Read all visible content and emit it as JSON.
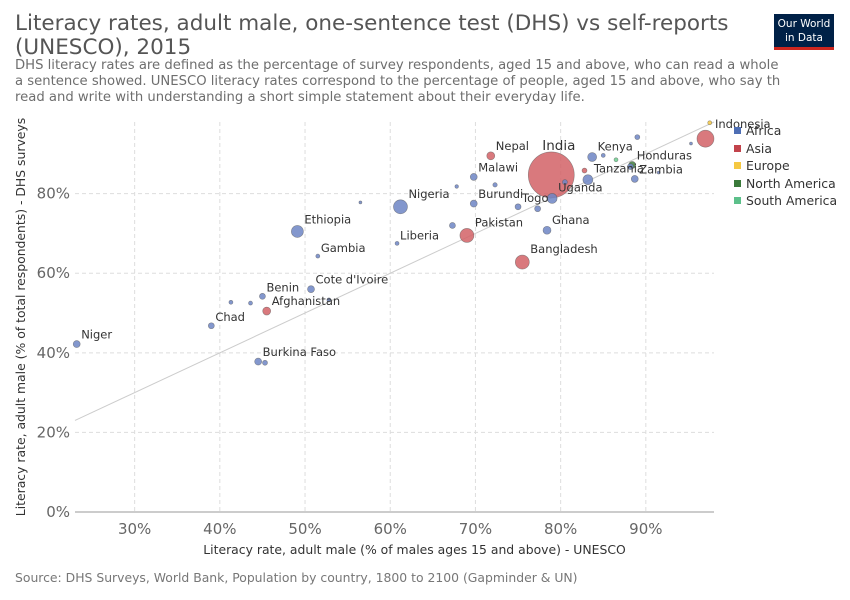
{
  "header": {
    "title": "Literacy rates, adult male, one-sentence test (DHS) vs self-reports (UNESCO), 2015",
    "subtitle_lines": [
      "DHS literacy rates are defined as the percentage of survey respondents, aged 15 and above, who can read a whole",
      "a sentence showed. UNESCO literacy rates correspond to the percentage of people, aged 15 and above, who say th",
      "read and write with understanding a short simple statement about their everyday life."
    ]
  },
  "logo": {
    "line1": "Our World",
    "line2": "in Data"
  },
  "footer": {
    "source": "Source: DHS Surveys, World Bank, Population by country, 1800 to 2100 (Gapminder & UN)"
  },
  "colors": {
    "Africa": "#6d85c4",
    "Asia": "#d26166",
    "Europe": "#f5c842",
    "North America": "#3f7f3f",
    "South America": "#6dcf8f",
    "grid": "#dddddd",
    "reference_line": "#cccccc"
  },
  "legend": [
    {
      "label": "Africa",
      "color": "#4e6eb4"
    },
    {
      "label": "Asia",
      "color": "#c2434b"
    },
    {
      "label": "Europe",
      "color": "#f5c842"
    },
    {
      "label": "North America",
      "color": "#3a7a3a"
    },
    {
      "label": "South America",
      "color": "#5cc08a"
    }
  ],
  "chart_data": {
    "type": "scatter",
    "title": "Literacy rates, adult male, one-sentence test (DHS) vs self-reports (UNESCO), 2015",
    "xlabel": "Literacy rate, adult male (% of males ages 15 and above) - UNESCO",
    "ylabel": "Literacy rate, adult male (% of total respondents) - DHS surveys",
    "xlim": [
      23,
      98
    ],
    "ylim": [
      0,
      98
    ],
    "x_ticks": [
      30,
      40,
      50,
      60,
      70,
      80,
      90
    ],
    "x_tick_labels": [
      "30%",
      "40%",
      "50%",
      "60%",
      "70%",
      "80%",
      "90%"
    ],
    "y_ticks": [
      0,
      20,
      40,
      60,
      80
    ],
    "y_tick_labels": [
      "0%",
      "20%",
      "40%",
      "60%",
      "80%"
    ],
    "grid": true,
    "reference_line": "y = x",
    "size_encoding": "population",
    "points": [
      {
        "name": "Niger",
        "x": 23.2,
        "y": 42.2,
        "region": "Africa",
        "r": 3.5,
        "labeled": true
      },
      {
        "name": "Chad",
        "x": 39,
        "y": 46.8,
        "region": "Africa",
        "r": 3,
        "labeled": true
      },
      {
        "name": "Benin",
        "x": 45,
        "y": 54.2,
        "region": "Africa",
        "r": 3,
        "labeled": true
      },
      {
        "name": "Afghanistan",
        "x": 45.5,
        "y": 50.5,
        "region": "Asia",
        "r": 4,
        "labeled": true
      },
      {
        "name": "Burkina Faso",
        "x": 44.5,
        "y": 37.8,
        "region": "Africa",
        "r": 3.5,
        "labeled": true
      },
      {
        "name": "Ethiopia",
        "x": 49.1,
        "y": 70.5,
        "region": "Africa",
        "r": 6,
        "labeled": true
      },
      {
        "name": "Gambia",
        "x": 51.5,
        "y": 64.3,
        "region": "Africa",
        "r": 2,
        "labeled": true
      },
      {
        "name": "Cote d'Ivoire",
        "x": 50.7,
        "y": 56,
        "region": "Africa",
        "r": 3.5,
        "labeled": true
      },
      {
        "name": "Nigeria",
        "x": 61.2,
        "y": 76.7,
        "region": "Africa",
        "r": 7,
        "labeled": true
      },
      {
        "name": "Liberia",
        "x": 60.8,
        "y": 67.5,
        "region": "Africa",
        "r": 2,
        "labeled": true
      },
      {
        "name": "Malawi",
        "x": 69.8,
        "y": 84.2,
        "region": "Africa",
        "r": 3.5,
        "labeled": true
      },
      {
        "name": "Nepal",
        "x": 71.8,
        "y": 89.5,
        "region": "Asia",
        "r": 4,
        "labeled": true
      },
      {
        "name": "Burundi",
        "x": 69.8,
        "y": 77.5,
        "region": "Africa",
        "r": 3.5,
        "labeled": true
      },
      {
        "name": "Pakistan",
        "x": 69,
        "y": 69.5,
        "region": "Asia",
        "r": 7,
        "labeled": true
      },
      {
        "name": "Togo",
        "x": 75,
        "y": 76.7,
        "region": "Africa",
        "r": 3,
        "labeled": true
      },
      {
        "name": "Uganda",
        "x": 79,
        "y": 78.8,
        "region": "Africa",
        "r": 5,
        "labeled": true
      },
      {
        "name": "Ghana",
        "x": 78.4,
        "y": 70.8,
        "region": "Africa",
        "r": 4,
        "labeled": true
      },
      {
        "name": "Bangladesh",
        "x": 75.5,
        "y": 62.8,
        "region": "Asia",
        "r": 7,
        "labeled": true
      },
      {
        "name": "India",
        "x": 78.9,
        "y": 84.7,
        "region": "Asia",
        "r": 23,
        "labeled": true
      },
      {
        "name": "Kenya",
        "x": 83.7,
        "y": 89.2,
        "region": "Africa",
        "r": 4.5,
        "labeled": true
      },
      {
        "name": "Tanzania",
        "x": 83.2,
        "y": 83.5,
        "region": "Africa",
        "r": 5,
        "labeled": true
      },
      {
        "name": "Honduras",
        "x": 88.4,
        "y": 87.2,
        "region": "North America",
        "r": 3.5,
        "labeled": true
      },
      {
        "name": "Zambia",
        "x": 88.7,
        "y": 83.7,
        "region": "Africa",
        "r": 3.5,
        "labeled": true
      },
      {
        "name": "Indonesia",
        "x": 97,
        "y": 93.8,
        "region": "Asia",
        "r": 8.5,
        "labeled": true
      },
      {
        "name": "",
        "x": 41.3,
        "y": 52.7,
        "region": "Africa",
        "r": 2,
        "labeled": false
      },
      {
        "name": "",
        "x": 43.6,
        "y": 52.5,
        "region": "Africa",
        "r": 2,
        "labeled": false
      },
      {
        "name": "",
        "x": 52.8,
        "y": 53.3,
        "region": "Africa",
        "r": 2,
        "labeled": false
      },
      {
        "name": "",
        "x": 45.3,
        "y": 37.5,
        "region": "Africa",
        "r": 2.5,
        "labeled": false
      },
      {
        "name": "",
        "x": 56.5,
        "y": 77.8,
        "region": "Africa",
        "r": 1.5,
        "labeled": false
      },
      {
        "name": "",
        "x": 67.3,
        "y": 72,
        "region": "Africa",
        "r": 3,
        "labeled": false
      },
      {
        "name": "",
        "x": 67.8,
        "y": 81.8,
        "region": "Africa",
        "r": 1.8,
        "labeled": false
      },
      {
        "name": "",
        "x": 72.3,
        "y": 82.2,
        "region": "Africa",
        "r": 2.2,
        "labeled": false
      },
      {
        "name": "",
        "x": 77.3,
        "y": 76.2,
        "region": "Africa",
        "r": 3,
        "labeled": false
      },
      {
        "name": "",
        "x": 82.8,
        "y": 85.8,
        "region": "Asia",
        "r": 2.5,
        "labeled": false
      },
      {
        "name": "",
        "x": 85,
        "y": 89.6,
        "region": "Africa",
        "r": 2,
        "labeled": false
      },
      {
        "name": "",
        "x": 86.5,
        "y": 88.5,
        "region": "South America",
        "r": 2,
        "labeled": false
      },
      {
        "name": "",
        "x": 89,
        "y": 94.2,
        "region": "Africa",
        "r": 2.5,
        "labeled": false
      },
      {
        "name": "",
        "x": 91.5,
        "y": 85.3,
        "region": "Africa",
        "r": 1.5,
        "labeled": false
      },
      {
        "name": "",
        "x": 95.3,
        "y": 92.6,
        "region": "Africa",
        "r": 1.5,
        "labeled": false
      },
      {
        "name": "",
        "x": 97.5,
        "y": 97.8,
        "region": "Europe",
        "r": 2,
        "labeled": false
      },
      {
        "name": "",
        "x": 88.2,
        "y": 86.8,
        "region": "Africa",
        "r": 3,
        "labeled": false
      },
      {
        "name": "",
        "x": 80.5,
        "y": 82.9,
        "region": "Africa",
        "r": 2.5,
        "labeled": false
      }
    ]
  }
}
